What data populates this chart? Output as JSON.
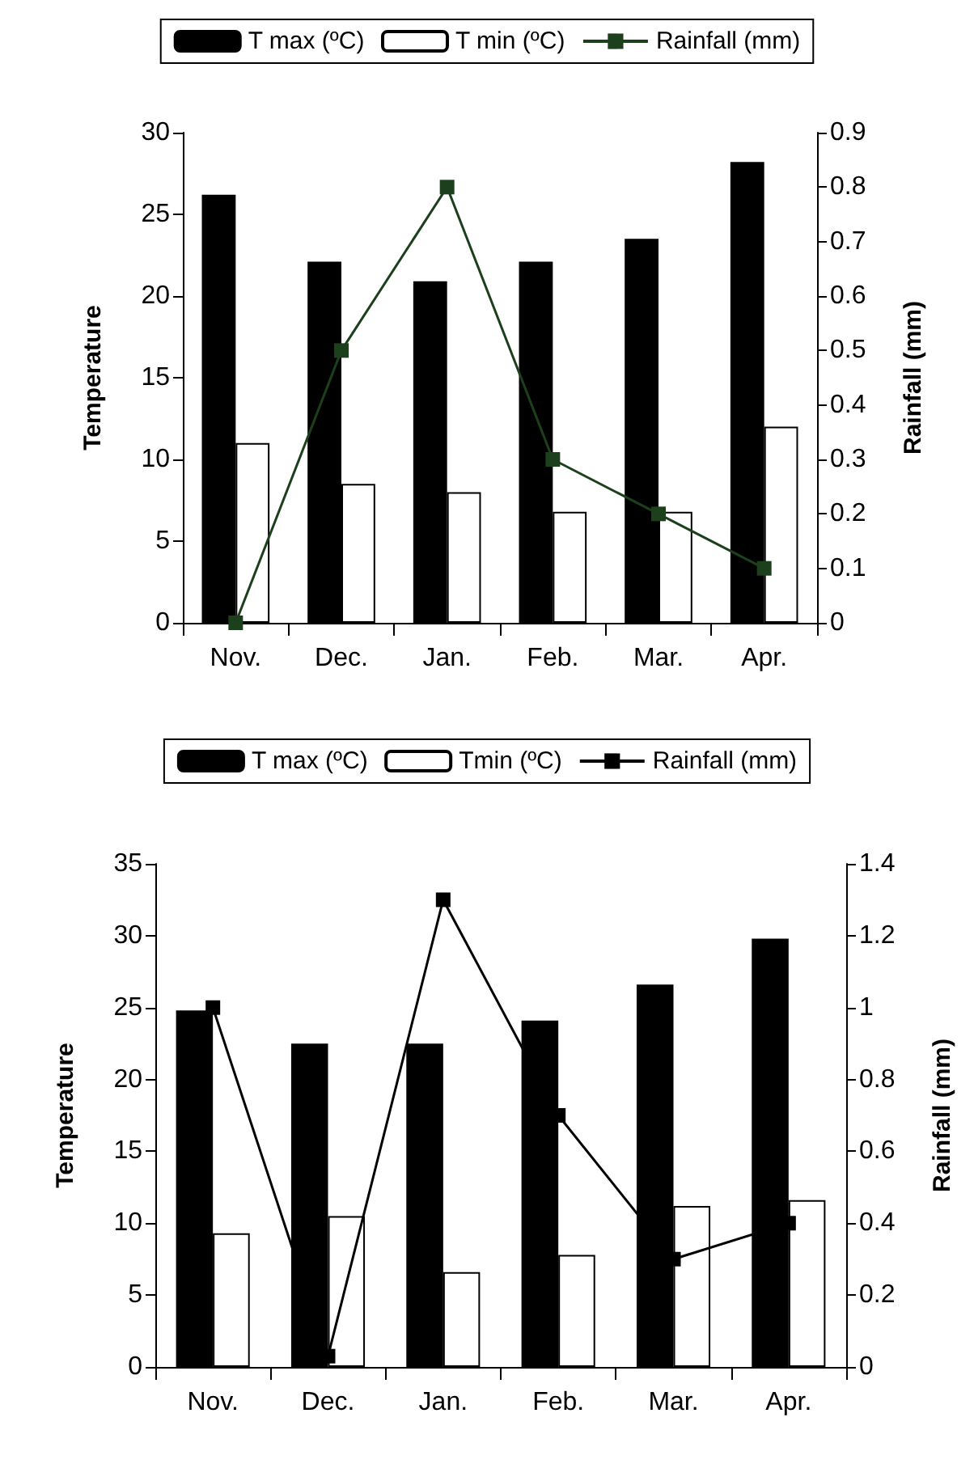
{
  "chart_data": [
    {
      "type": "bar",
      "categories": [
        "Nov.",
        "Dec.",
        "Jan.",
        "Feb.",
        "Mar.",
        "Apr."
      ],
      "ylabel": "Temperature",
      "y2label": "Rainfall (mm)",
      "series": [
        {
          "name": "T max (ºC)",
          "color": "#000000",
          "values": [
            26.2,
            22.1,
            20.9,
            22.1,
            23.5,
            28.2
          ]
        },
        {
          "name": "T min (ºC)",
          "color": "#ffffff",
          "values": [
            11,
            8.5,
            8,
            6.8,
            6.8,
            12
          ]
        },
        {
          "name": "Rainfall (mm)",
          "type": "line",
          "axis": "y2",
          "color": "#1c3f1c",
          "marker": "square",
          "line_style": "solid",
          "values": [
            0,
            0.5,
            0.8,
            0.3,
            0.2,
            0.1
          ]
        }
      ],
      "ylim": [
        0,
        30
      ],
      "yticks": [
        0,
        5,
        10,
        15,
        20,
        25,
        30
      ],
      "y2lim": [
        0,
        0.9
      ],
      "y2ticks": [
        0,
        0.1,
        0.2,
        0.3,
        0.4,
        0.5,
        0.6,
        0.7,
        0.8,
        0.9
      ],
      "grid": false,
      "legend": "top"
    },
    {
      "type": "bar",
      "categories": [
        "Nov.",
        "Dec.",
        "Jan.",
        "Feb.",
        "Mar.",
        "Apr."
      ],
      "ylabel": "Temperature",
      "y2label": "Rainfall (mm)",
      "series": [
        {
          "name": "T max (ºC)",
          "color": "#000000",
          "values": [
            24.8,
            22.5,
            22.5,
            24.1,
            26.6,
            29.8
          ]
        },
        {
          "name": "Tmin (ºC)",
          "color": "#ffffff",
          "values": [
            9.3,
            10.5,
            6.6,
            7.8,
            11.2,
            11.6
          ]
        },
        {
          "name": "Rainfall (mm)",
          "type": "line",
          "axis": "y2",
          "color": "#000000",
          "marker": "square",
          "line_style": "solid",
          "values": [
            1.0,
            0.03,
            1.3,
            0.7,
            0.3,
            0.4
          ]
        }
      ],
      "ylim": [
        0,
        35
      ],
      "yticks": [
        0,
        5,
        10,
        15,
        20,
        25,
        30,
        35
      ],
      "y2lim": [
        0,
        1.4
      ],
      "y2ticks": [
        0,
        0.2,
        0.4,
        0.6,
        0.8,
        1,
        1.2,
        1.4
      ],
      "grid": false,
      "legend": "top"
    }
  ]
}
